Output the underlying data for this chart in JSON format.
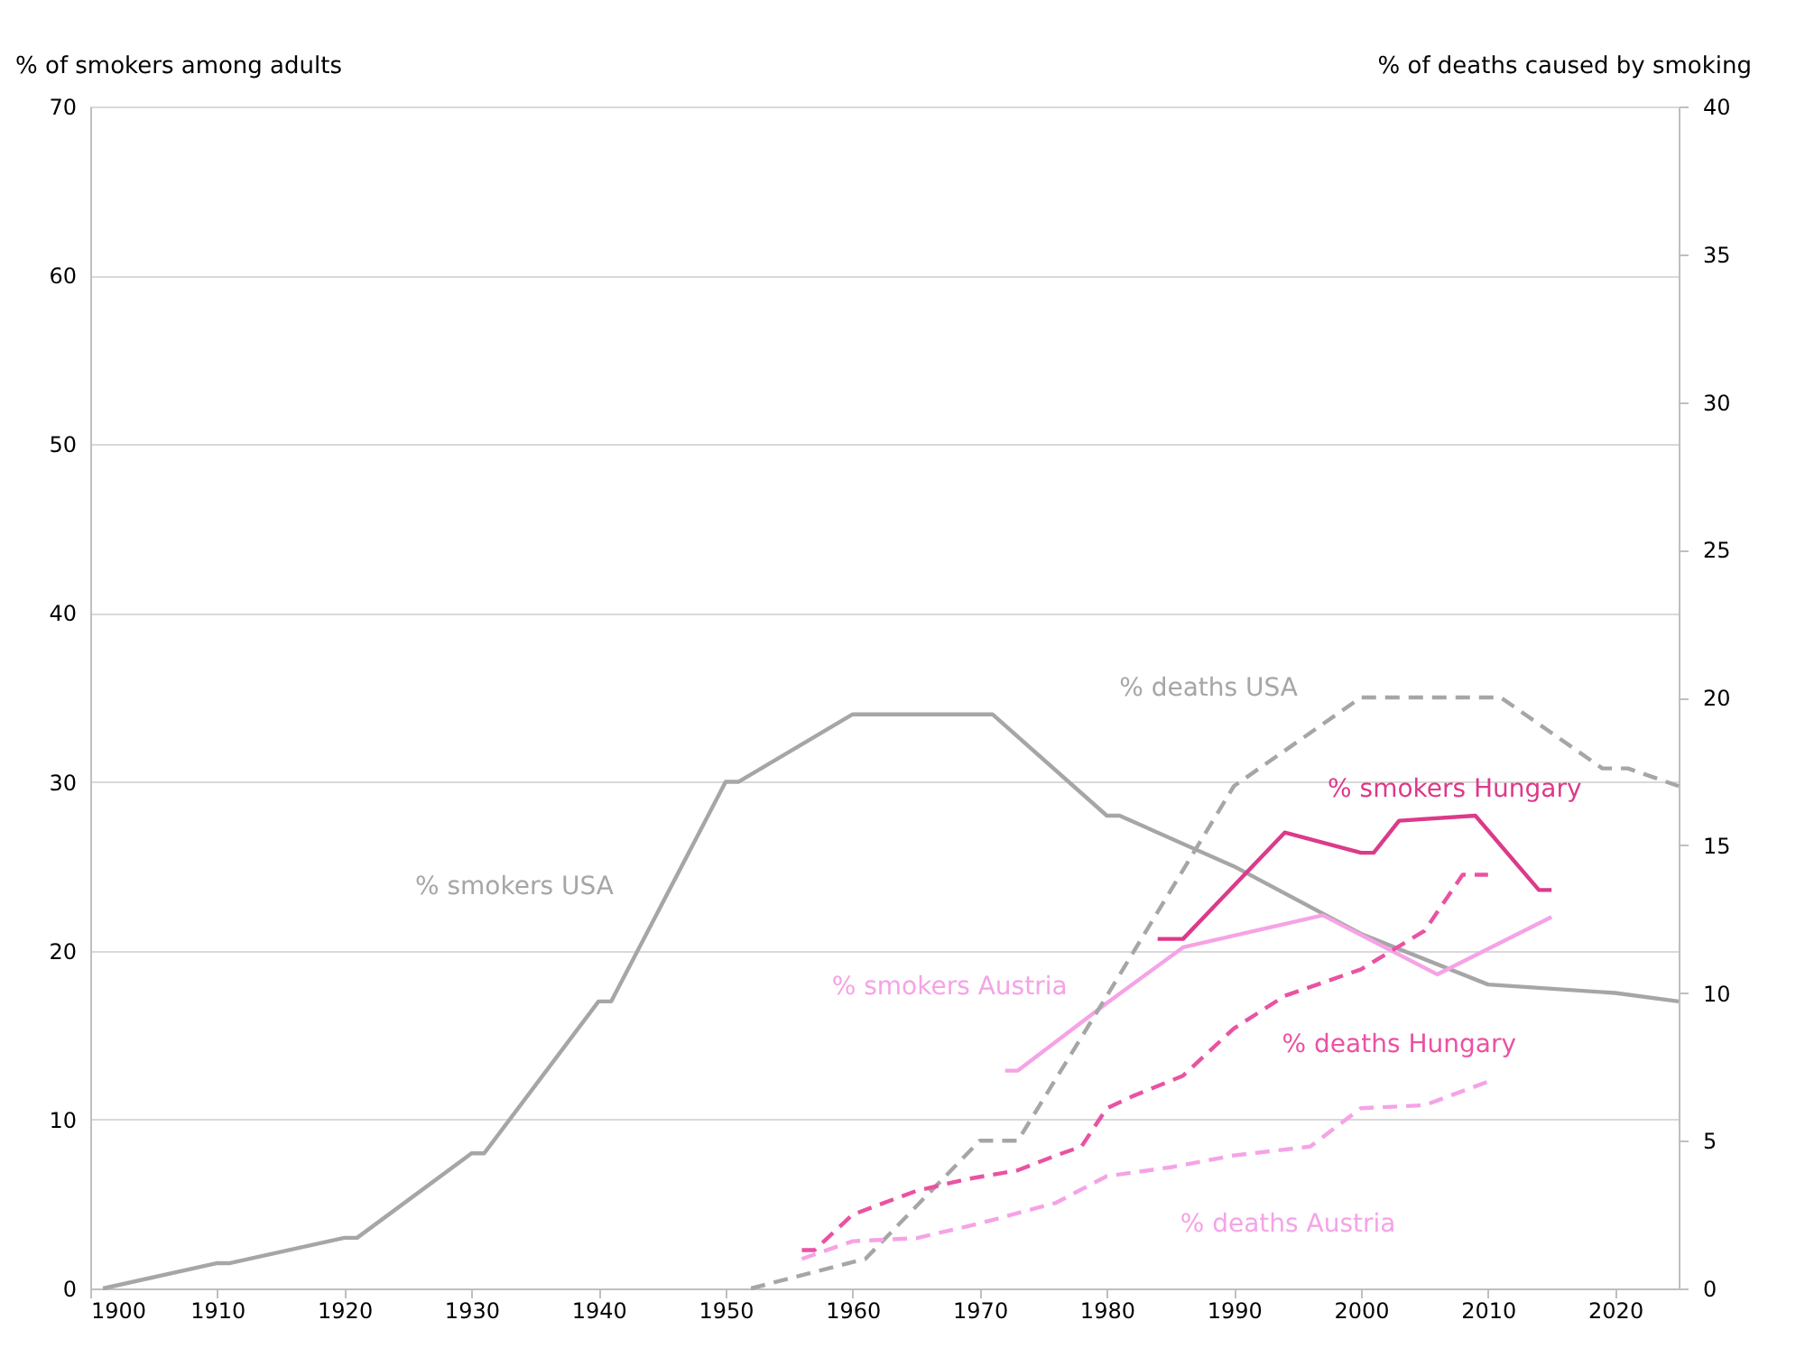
{
  "chart_data": {
    "type": "line",
    "ylabel": "% of smokers among adults",
    "y2label": "% of deaths caused by smoking",
    "x": [
      1901,
      1910,
      1911,
      1920,
      1921,
      1930,
      1931,
      1940,
      1941,
      1950,
      1951,
      1960,
      1971,
      1980,
      1981,
      1990,
      2000,
      2010,
      2020,
      2025
    ],
    "series": [
      {
        "name": "% smokers USA",
        "color": "#a6a6a6",
        "line_style": "solid",
        "values": [
          0,
          1.5,
          1.5,
          3,
          3,
          8,
          8,
          17,
          17,
          30,
          30,
          34,
          34,
          28,
          28,
          25,
          21,
          18,
          17.5,
          17
        ]
      },
      {
        "name": "% deaths USA",
        "color": "#a6a6a6",
        "line_style": "dashed",
        "axis": "y2",
        "x": [
          1952,
          1961,
          1970,
          1973,
          1980,
          1990,
          2000,
          2011,
          2019,
          2021,
          2025
        ],
        "values": [
          0,
          1,
          5,
          5,
          9.9,
          17,
          20,
          20,
          17.6,
          17.6,
          17
        ]
      },
      {
        "name": "% smokers Hungary",
        "color": "#dc3a8a",
        "line_style": "solid",
        "x": [
          1984,
          1986,
          1994,
          2000,
          2001,
          2003,
          2009,
          2014,
          2015
        ],
        "values": [
          20.7,
          20.7,
          27,
          25.8,
          25.8,
          27.7,
          28,
          23.6,
          23.6
        ]
      },
      {
        "name": "% smokers Austria",
        "color": "#f5a3e6",
        "line_style": "solid",
        "x": [
          1972,
          1973,
          1980,
          1986,
          1997,
          2006,
          2015
        ],
        "values": [
          12.9,
          12.9,
          16.9,
          20.2,
          22.1,
          18.6,
          22
        ]
      },
      {
        "name": "% deaths Hungary",
        "color": "#ea52a2",
        "line_style": "dashed",
        "axis": "y2",
        "x": [
          1956,
          1957,
          1960,
          1965,
          1969,
          1973,
          1976,
          1978,
          1980,
          1982,
          1986,
          1990,
          1994,
          2000,
          2005,
          2008,
          2010
        ],
        "values": [
          1.3,
          1.3,
          2.5,
          3.3,
          3.7,
          4,
          4.5,
          4.8,
          6.1,
          6.5,
          7.2,
          8.8,
          9.9,
          10.8,
          12.1,
          14,
          14
        ]
      },
      {
        "name": "% deaths Austria",
        "color": "#f5a3e6",
        "line_style": "dashed",
        "axis": "y2",
        "x": [
          1956,
          1960,
          1965,
          1970,
          1976,
          1980,
          1985,
          1990,
          1996,
          2000,
          2005,
          2010
        ],
        "values": [
          1,
          1.6,
          1.7,
          2.2,
          2.9,
          3.8,
          4.1,
          4.5,
          4.8,
          6.1,
          6.2,
          7
        ]
      }
    ],
    "xlim": [
      1900,
      2025
    ],
    "xticks": [
      1900,
      1910,
      1920,
      1930,
      1940,
      1950,
      1960,
      1970,
      1980,
      1990,
      2000,
      2010,
      2020
    ],
    "ylim": [
      0,
      70
    ],
    "yticks": [
      0,
      10,
      20,
      30,
      40,
      50,
      60,
      70
    ],
    "y2lim": [
      0,
      40
    ],
    "y2ticks": [
      0,
      5,
      10,
      15,
      20,
      25,
      30,
      35,
      40
    ],
    "grid": "y",
    "legend": false,
    "marker": "none"
  }
}
